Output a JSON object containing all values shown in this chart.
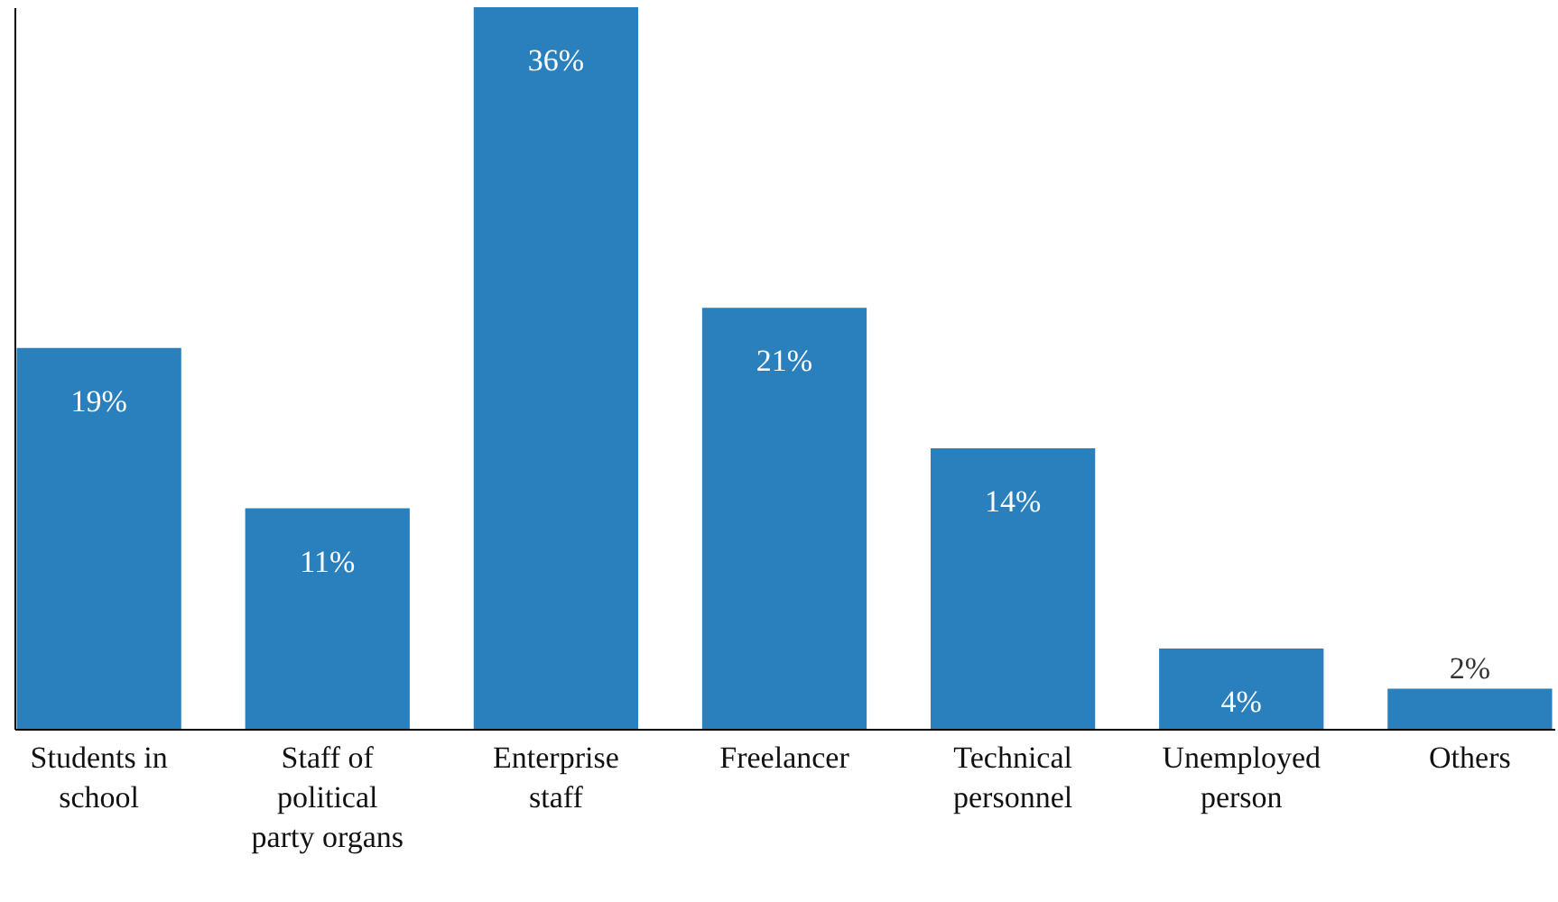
{
  "chart_data": {
    "type": "bar",
    "categories": [
      "Students in school",
      "Staff of political party organs",
      "Enterprise staff",
      "Freelancer",
      "Technical personnel",
      "Unemployed person",
      "Others"
    ],
    "values": [
      19,
      11,
      36,
      21,
      14,
      4,
      2
    ],
    "value_labels": [
      "19%",
      "11%",
      "36%",
      "21%",
      "14%",
      "4%",
      "2%"
    ],
    "color": "#2a80bd"
  }
}
